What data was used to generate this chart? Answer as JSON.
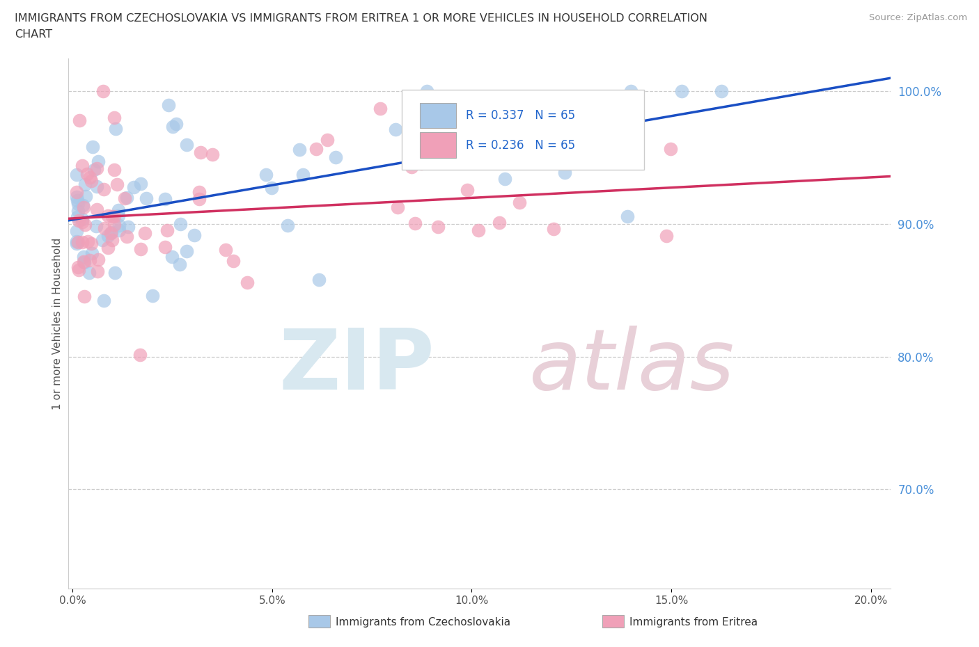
{
  "title_line1": "IMMIGRANTS FROM CZECHOSLOVAKIA VS IMMIGRANTS FROM ERITREA 1 OR MORE VEHICLES IN HOUSEHOLD CORRELATION",
  "title_line2": "CHART",
  "source_text": "Source: ZipAtlas.com",
  "ylabel": "1 or more Vehicles in Household",
  "watermark_zip": "ZIP",
  "watermark_atlas": "atlas",
  "blue_label": "Immigrants from Czechoslovakia",
  "pink_label": "Immigrants from Eritrea",
  "blue_color": "#a8c8e8",
  "pink_color": "#f0a0b8",
  "blue_line_color": "#1a4fc4",
  "pink_line_color": "#d03060",
  "legend_blue_R": "R = 0.337",
  "legend_blue_N": "N = 65",
  "legend_pink_R": "R = 0.236",
  "legend_pink_N": "N = 65",
  "xlim": [
    -0.001,
    0.205
  ],
  "ylim": [
    0.625,
    1.025
  ],
  "yticks": [
    0.7,
    0.8,
    0.9,
    1.0
  ],
  "ytick_labels": [
    "70.0%",
    "80.0%",
    "90.0%",
    "100.0%"
  ],
  "xticks": [
    0.0,
    0.05,
    0.1,
    0.15,
    0.2
  ],
  "xtick_labels": [
    "0.0%",
    "5.0%",
    "10.0%",
    "15.0%",
    "20.0%"
  ],
  "seed": 12
}
